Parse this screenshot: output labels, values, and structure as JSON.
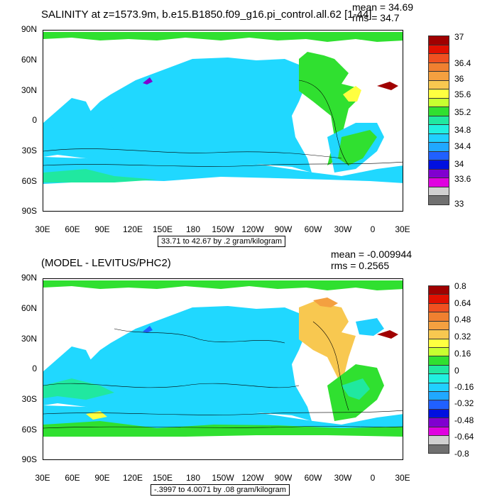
{
  "top": {
    "title": "SALINITY at z=1573.9m, b.e15.B1850.f09_g16.pi_control.all.62 [1-44]",
    "mean": "mean = 34.69",
    "rms": "rms = 34.7",
    "range": "33.71 to 42.67 by .2 gram/kilogram",
    "lat_labels": [
      "90N",
      "60N",
      "30N",
      "0",
      "30S",
      "60S",
      "90S"
    ],
    "lon_labels": [
      "30E",
      "60E",
      "90E",
      "120E",
      "150E",
      "180",
      "150W",
      "120W",
      "90W",
      "60W",
      "30W",
      "0",
      "30E"
    ],
    "colorbar_labels": [
      "37",
      "36.4",
      "36",
      "35.6",
      "35.2",
      "34.8",
      "34.4",
      "34",
      "33.6",
      "33"
    ],
    "colors": [
      "#a00000",
      "#e01000",
      "#f05020",
      "#f08030",
      "#f4a040",
      "#f8c850",
      "#ffff40",
      "#c8ff30",
      "#30e030",
      "#20e8a0",
      "#20f0e0",
      "#20d0ff",
      "#20a8ff",
      "#2060ff",
      "#0010e0",
      "#8000d0",
      "#e000e0",
      "#d0d0d0",
      "#707070"
    ]
  },
  "bottom": {
    "title": "(MODEL - LEVITUS/PHC2)",
    "mean": "mean = -0.009944",
    "rms": "rms = 0.2565",
    "range": "-.3997 to 4.0071 by .08 gram/kilogram",
    "lat_labels": [
      "90N",
      "60N",
      "30N",
      "0",
      "30S",
      "60S",
      "90S"
    ],
    "lon_labels": [
      "30E",
      "60E",
      "90E",
      "120E",
      "150E",
      "180",
      "150W",
      "120W",
      "90W",
      "60W",
      "30W",
      "0",
      "30E"
    ],
    "colorbar_labels": [
      "0.8",
      "0.64",
      "0.48",
      "0.32",
      "0.16",
      "0",
      "-0.16",
      "-0.32",
      "-0.48",
      "-0.64",
      "-0.8"
    ],
    "colors": [
      "#a00000",
      "#e01000",
      "#f05020",
      "#f08030",
      "#f4a040",
      "#f8c850",
      "#ffff40",
      "#c8ff30",
      "#30e030",
      "#20e8a0",
      "#20f0e0",
      "#20d0ff",
      "#20a8ff",
      "#2060ff",
      "#0010e0",
      "#8000d0",
      "#e000e0",
      "#d0d0d0",
      "#707070"
    ]
  }
}
